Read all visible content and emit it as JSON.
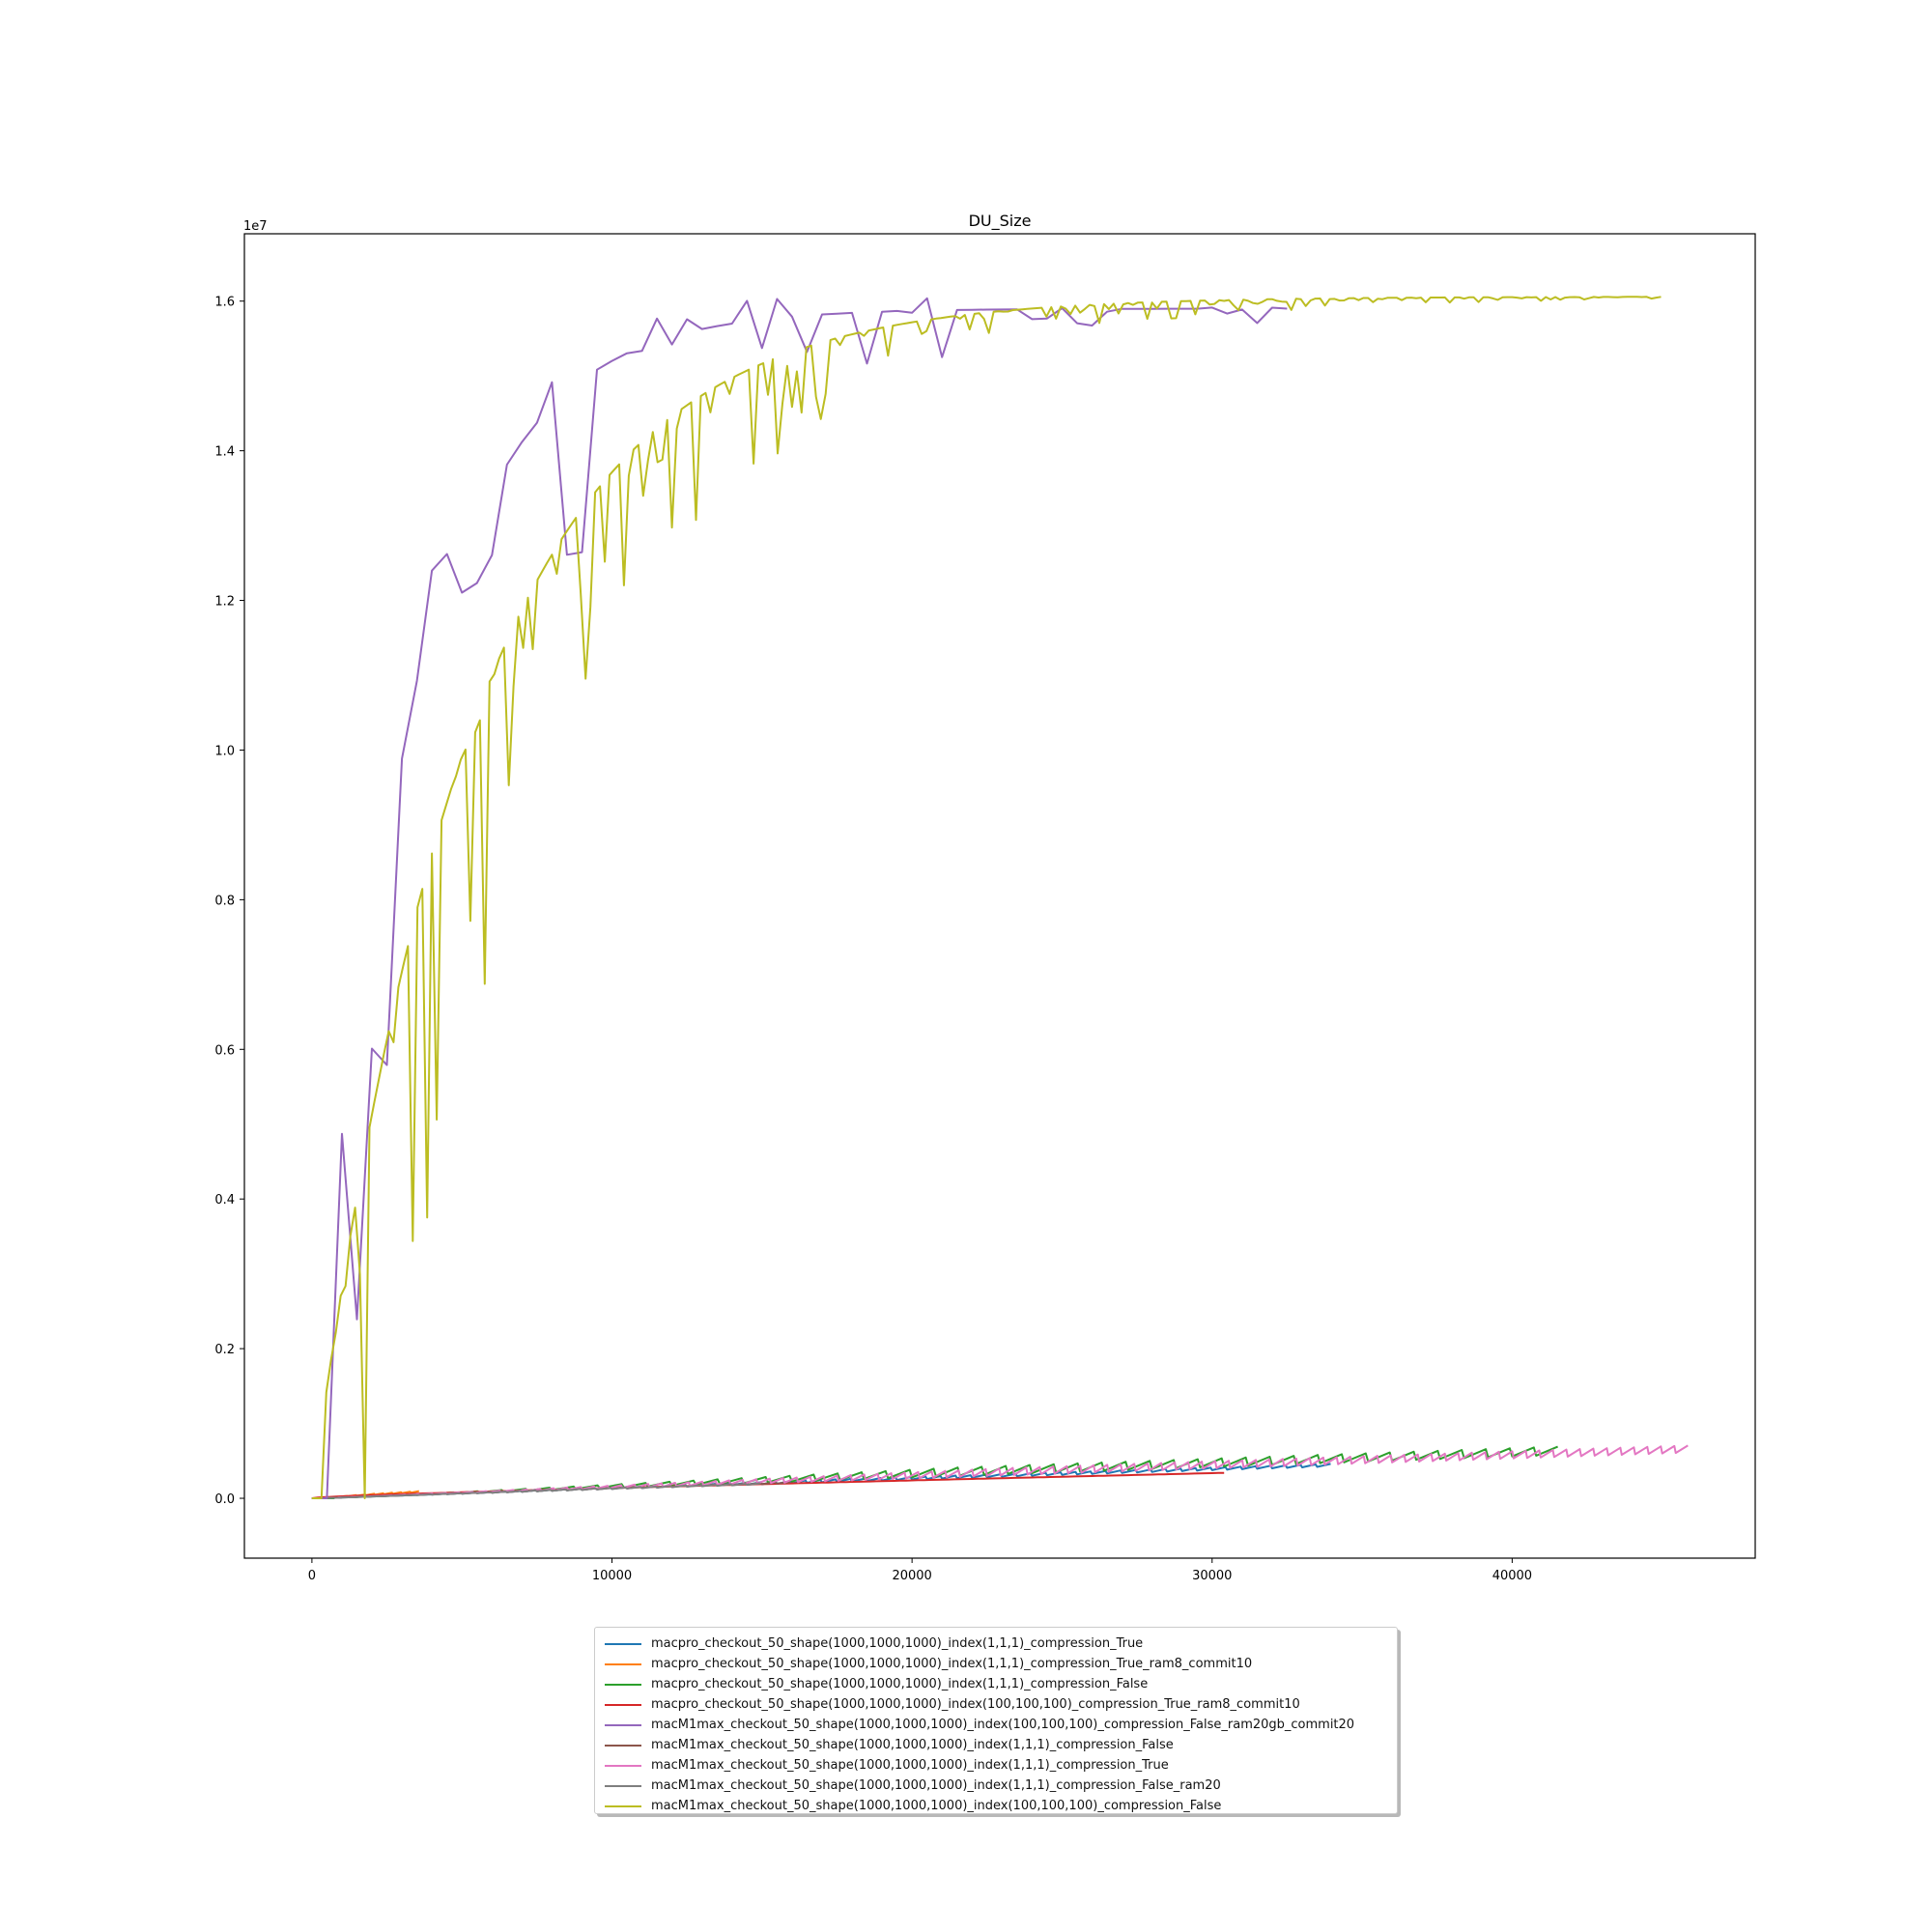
{
  "chart_data": {
    "type": "line",
    "title": "DU_Size",
    "xlabel": "",
    "ylabel": "",
    "y_offset_label": "1e7",
    "xlim": [
      -2250,
      48100
    ],
    "ylim": [
      -0.08,
      1.69
    ],
    "x_ticks": [
      0,
      10000,
      20000,
      30000,
      40000
    ],
    "x_tick_labels": [
      "0",
      "10000",
      "20000",
      "30000",
      "40000"
    ],
    "y_ticks": [
      0.0,
      0.2,
      0.4,
      0.6,
      0.8,
      1.0,
      1.2,
      1.4,
      1.6
    ],
    "y_tick_labels": [
      "0.0",
      "0.2",
      "0.4",
      "0.6",
      "0.8",
      "1.0",
      "1.2",
      "1.4",
      "1.6"
    ],
    "grid": false,
    "legend_position": "below plot, centered",
    "series": [
      {
        "name": "macpro_checkout_50_shape(1000,1000,1000)_index(1,1,1)_compression_True",
        "color": "#1f77b4",
        "style": "sawtooth",
        "x_max": 33500,
        "y_start": 0.0,
        "y_end": 0.042,
        "amp": 0.004,
        "period": 500
      },
      {
        "name": "macpro_checkout_50_shape(1000,1000,1000)_index(1,1,1)_compression_True_ram8_commit10",
        "color": "#ff7f0e",
        "style": "sawtooth",
        "x_max": 3500,
        "y_start": 0.0,
        "y_end": 0.008,
        "amp": 0.002,
        "period": 300
      },
      {
        "name": "macpro_checkout_50_shape(1000,1000,1000)_index(1,1,1)_compression_False",
        "color": "#2ca02c",
        "style": "sawtooth",
        "x_max": 41500,
        "y_start": 0.0,
        "y_end": 0.058,
        "amp": 0.012,
        "period": 800
      },
      {
        "name": "macpro_checkout_50_shape(1000,1000,1000)_index(100,100,100)_compression_True_ram8_commit10",
        "color": "#d62728",
        "style": "smooth",
        "x_max": 30400,
        "y_start": 0.0,
        "y_end": 0.034,
        "amp": 0.0,
        "period": 1000
      },
      {
        "name": "macM1max_checkout_50_shape(1000,1000,1000)_index(100,100,100)_compression_False_ram20gb_commit20",
        "color": "#9467bd",
        "style": "noisy",
        "x_max": 32800,
        "y_start": 0.0,
        "y_end": 1.59,
        "amp": 0.7,
        "period": 500
      },
      {
        "name": "macM1max_checkout_50_shape(1000,1000,1000)_index(1,1,1)_compression_False",
        "color": "#8c564b",
        "style": "sawtooth",
        "x_max": 15800,
        "y_start": 0.0,
        "y_end": 0.02,
        "amp": 0.002,
        "period": 500
      },
      {
        "name": "macM1max_checkout_50_shape(1000,1000,1000)_index(1,1,1)_compression_True",
        "color": "#e377c2",
        "style": "sawtooth",
        "x_max": 45800,
        "y_start": 0.0,
        "y_end": 0.061,
        "amp": 0.01,
        "period": 450
      },
      {
        "name": "macM1max_checkout_50_shape(1000,1000,1000)_index(1,1,1)_compression_False_ram20",
        "color": "#7f7f7f",
        "style": "sawtooth",
        "x_max": 14500,
        "y_start": 0.0,
        "y_end": 0.018,
        "amp": 0.002,
        "period": 500
      },
      {
        "name": "macM1max_checkout_50_shape(1000,1000,1000)_index(100,100,100)_compression_False",
        "color": "#bcbd22",
        "style": "noisy",
        "x_max": 45000,
        "y_start": 0.0,
        "y_end": 1.606,
        "amp": 0.9,
        "period": 160
      }
    ]
  }
}
